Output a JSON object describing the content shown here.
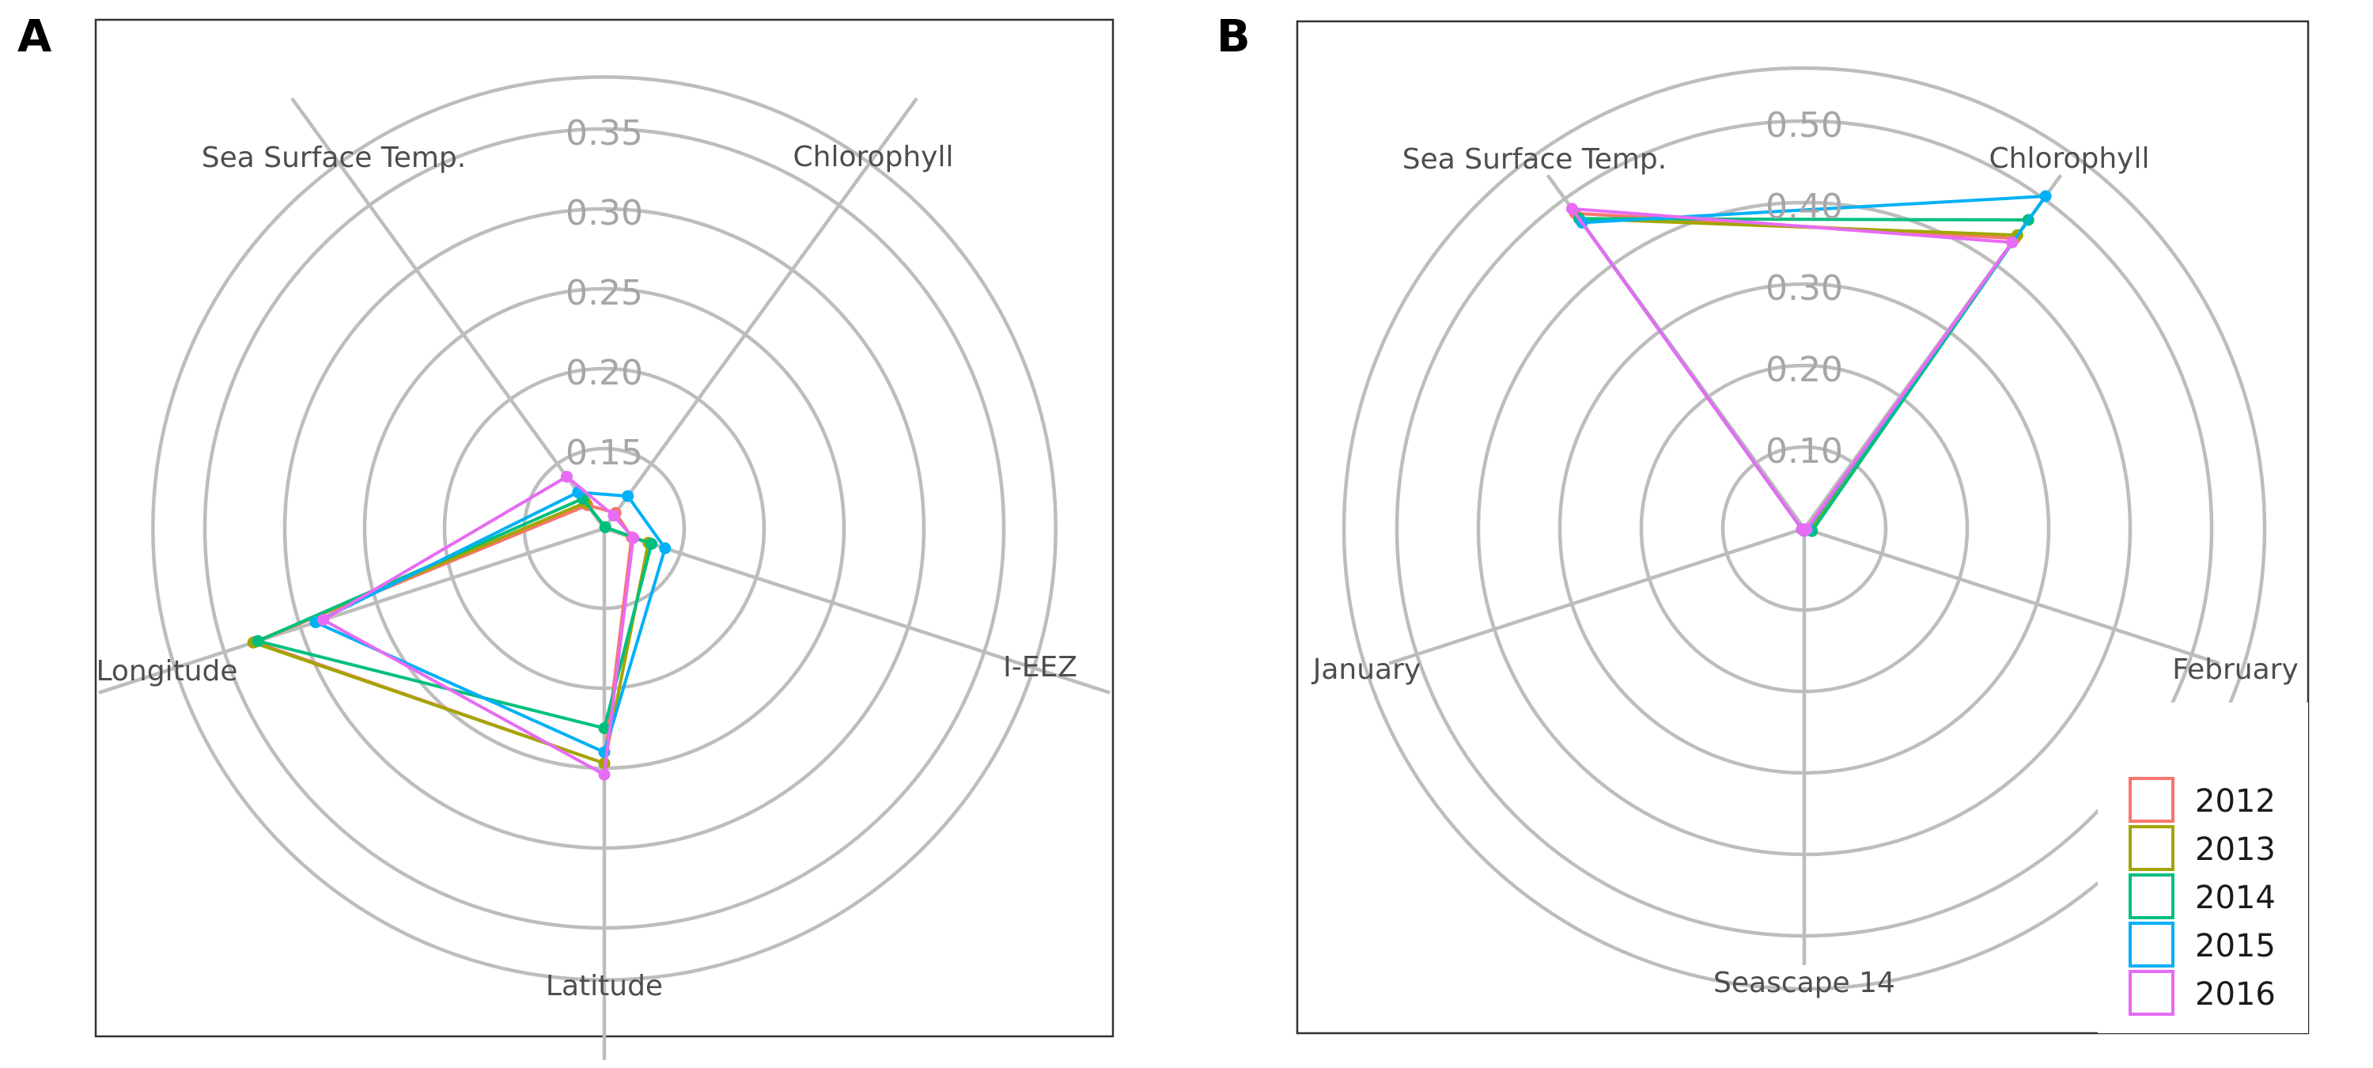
{
  "chart_data": [
    {
      "panel": "A",
      "type": "radar",
      "rlim": [
        0.1,
        0.35
      ],
      "ticks": [
        "0.15",
        "0.20",
        "0.25",
        "0.30",
        "0.35"
      ],
      "axes": [
        "Chlorophyll",
        "I-EEZ",
        "Latitude",
        "Longitude",
        "Sea Surface Temp."
      ],
      "series": [
        {
          "name": "2012",
          "color": "#F8766D",
          "values": [
            0.112,
            0.118,
            0.247,
            0.33,
            0.118
          ]
        },
        {
          "name": "2013",
          "color": "#A3A500",
          "values": [
            0.101,
            0.129,
            0.247,
            0.331,
            0.12
          ]
        },
        {
          "name": "2014",
          "color": "#00BF7D",
          "values": [
            0.101,
            0.131,
            0.225,
            0.328,
            0.123
          ]
        },
        {
          "name": "2015",
          "color": "#00B0F6",
          "values": [
            0.125,
            0.14,
            0.24,
            0.29,
            0.128
          ]
        },
        {
          "name": "2016",
          "color": "#E76BF3",
          "values": [
            0.11,
            0.119,
            0.254,
            0.285,
            0.14
          ]
        }
      ],
      "grid": true
    },
    {
      "panel": "B",
      "type": "radar",
      "rlim": [
        0.0,
        0.55
      ],
      "ticks": [
        "0.10",
        "0.20",
        "0.30",
        "0.40",
        "0.50"
      ],
      "axes": [
        "Chlorophyll",
        "February",
        "Seascape 14",
        "January",
        "Sea Surface Temp."
      ],
      "series": [
        {
          "name": "2012",
          "color": "#F8766D",
          "values": [
            0.44,
            0.003,
            0.003,
            0.003,
            0.478
          ]
        },
        {
          "name": "2013",
          "color": "#A3A500",
          "values": [
            0.445,
            0.008,
            0.003,
            0.003,
            0.47
          ]
        },
        {
          "name": "2014",
          "color": "#00BF7D",
          "values": [
            0.468,
            0.01,
            0.003,
            0.003,
            0.47
          ]
        },
        {
          "name": "2015",
          "color": "#00B0F6",
          "values": [
            0.504,
            0.004,
            0.003,
            0.003,
            0.464
          ]
        },
        {
          "name": "2016",
          "color": "#E76BF3",
          "values": [
            0.434,
            0.003,
            0.003,
            0.003,
            0.485
          ]
        }
      ],
      "grid": true,
      "legend_position": "bottom-right"
    }
  ]
}
